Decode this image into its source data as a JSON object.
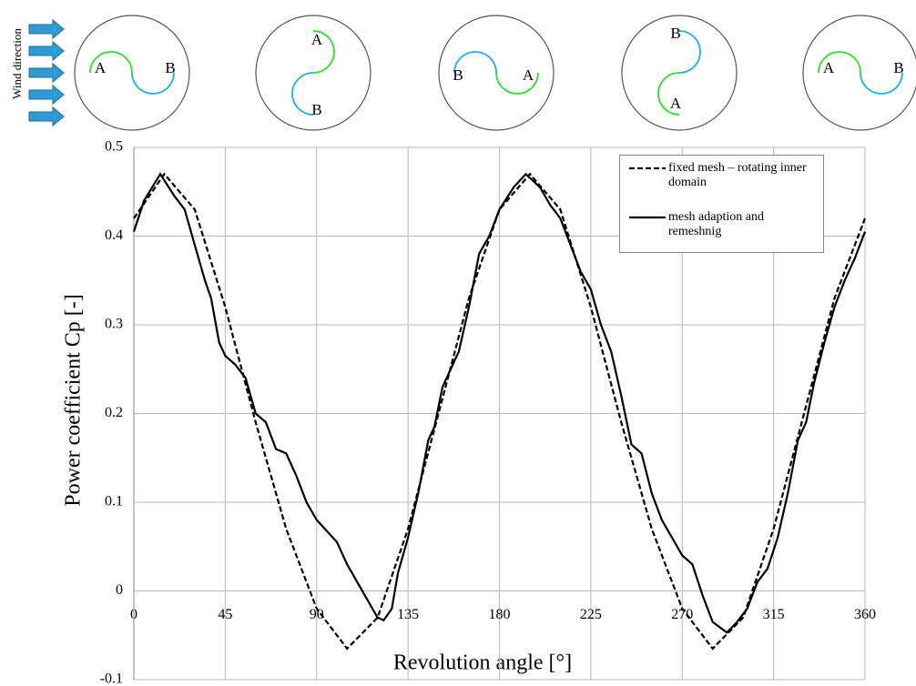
{
  "chart_data": {
    "type": "line",
    "xlabel": "Revolution angle [°]",
    "ylabel": "Power coefficient Cp [-]",
    "xlim": [
      0,
      360
    ],
    "ylim": [
      -0.1,
      0.5
    ],
    "xticks": [
      0,
      45,
      90,
      135,
      180,
      225,
      270,
      315,
      360
    ],
    "yticks": [
      -0.1,
      0,
      0.1,
      0.2,
      0.3,
      0.4,
      0.5
    ],
    "grid": true,
    "legend": "upper right",
    "series": [
      {
        "name": "fixed mesh – rotating inner domain",
        "color": "#000000",
        "style": "dashed",
        "x": [
          0,
          15,
          30,
          45,
          60,
          75,
          90,
          105,
          120,
          135,
          150,
          165,
          180,
          195,
          210,
          225,
          240,
          255,
          270,
          285,
          300,
          315,
          330,
          345,
          360
        ],
        "values": [
          0.42,
          0.47,
          0.43,
          0.32,
          0.19,
          0.07,
          -0.02,
          -0.065,
          -0.03,
          0.07,
          0.2,
          0.33,
          0.43,
          0.47,
          0.43,
          0.32,
          0.19,
          0.07,
          -0.02,
          -0.065,
          -0.03,
          0.07,
          0.2,
          0.33,
          0.42
        ]
      },
      {
        "name": "mesh adaption and remeshnig",
        "color": "#000000",
        "style": "solid",
        "x": [
          0,
          5,
          13,
          20,
          25,
          30,
          35,
          38,
          42,
          45,
          50,
          55,
          60,
          65,
          70,
          75,
          80,
          85,
          90,
          100,
          105,
          110,
          115,
          120,
          123,
          127,
          130,
          135,
          140,
          145,
          148,
          152,
          160,
          165,
          170,
          175,
          180,
          187,
          193,
          200,
          205,
          210,
          215,
          220,
          225,
          230,
          235,
          240,
          245,
          250,
          255,
          260,
          265,
          270,
          275,
          280,
          285,
          292,
          297,
          302,
          307,
          312,
          317,
          322,
          327,
          331,
          335,
          340,
          345,
          350,
          355,
          360
        ],
        "values": [
          0.405,
          0.44,
          0.47,
          0.445,
          0.43,
          0.39,
          0.35,
          0.33,
          0.28,
          0.265,
          0.255,
          0.24,
          0.2,
          0.19,
          0.16,
          0.155,
          0.13,
          0.1,
          0.08,
          0.055,
          0.03,
          0.01,
          -0.01,
          -0.03,
          -0.033,
          -0.02,
          0.02,
          0.06,
          0.11,
          0.17,
          0.185,
          0.23,
          0.27,
          0.32,
          0.38,
          0.4,
          0.43,
          0.455,
          0.47,
          0.455,
          0.435,
          0.42,
          0.39,
          0.36,
          0.34,
          0.3,
          0.27,
          0.22,
          0.165,
          0.155,
          0.11,
          0.08,
          0.06,
          0.04,
          0.03,
          -0.005,
          -0.035,
          -0.047,
          -0.035,
          -0.02,
          0.01,
          0.025,
          0.06,
          0.11,
          0.17,
          0.19,
          0.235,
          0.28,
          0.32,
          0.35,
          0.375,
          0.405
        ]
      }
    ],
    "wind_label": "Wind direction",
    "rotor_labels": [
      [
        "A",
        "B"
      ],
      [
        "A",
        "B"
      ],
      [
        "A",
        "B"
      ],
      [
        "A",
        "B"
      ],
      [
        "A",
        "B"
      ]
    ]
  }
}
